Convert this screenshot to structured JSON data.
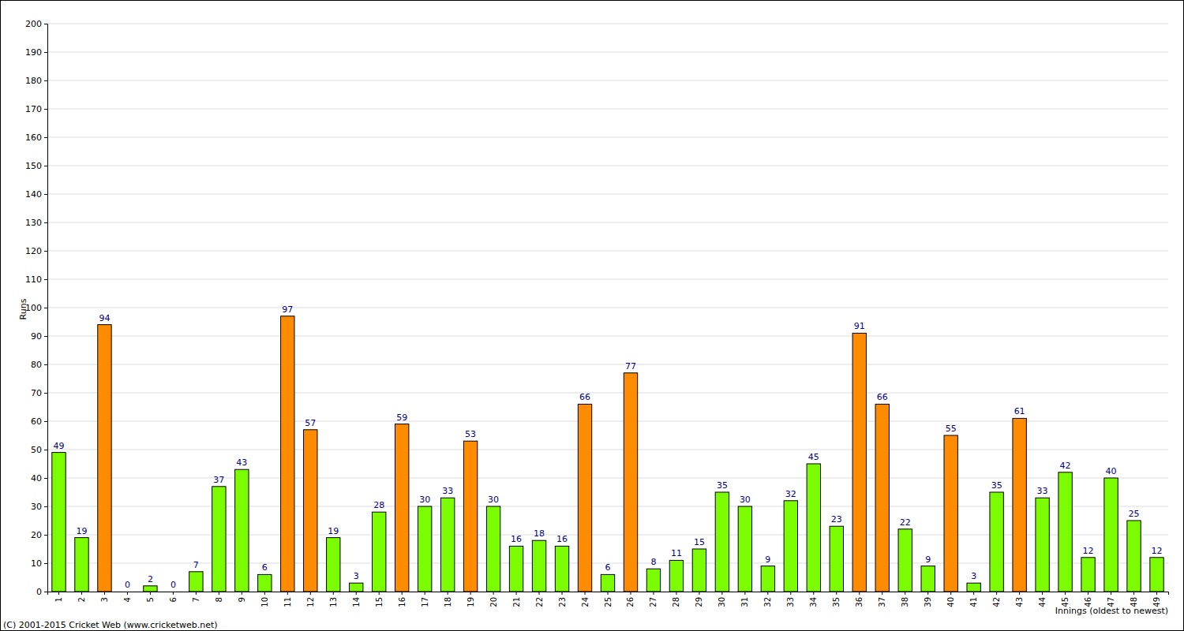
{
  "chart_data": {
    "type": "bar",
    "x_label": "Innings (oldest to newest)",
    "y_label": "Runs",
    "annotations": [
      "(C) 2001-2015 Cricket Web (www.cricketweb.net)"
    ],
    "categories": [
      "1",
      "2",
      "3",
      "4",
      "5",
      "6",
      "7",
      "8",
      "9",
      "10",
      "11",
      "12",
      "13",
      "14",
      "15",
      "16",
      "17",
      "18",
      "19",
      "20",
      "21",
      "22",
      "23",
      "24",
      "25",
      "26",
      "27",
      "28",
      "29",
      "30",
      "31",
      "32",
      "33",
      "34",
      "35",
      "36",
      "37",
      "38",
      "39",
      "40",
      "41",
      "42",
      "43",
      "44",
      "45",
      "46",
      "47",
      "48",
      "49"
    ],
    "values": [
      49,
      19,
      94,
      0,
      2,
      0,
      7,
      37,
      43,
      6,
      97,
      57,
      19,
      3,
      28,
      59,
      30,
      33,
      53,
      30,
      16,
      18,
      16,
      66,
      6,
      77,
      8,
      11,
      15,
      35,
      30,
      9,
      32,
      45,
      23,
      91,
      66,
      22,
      9,
      55,
      3,
      35,
      61,
      33,
      42,
      12,
      40,
      25,
      12
    ],
    "colors": [
      "#7cfc00",
      "#7cfc00",
      "#ff8c00",
      "#7cfc00",
      "#7cfc00",
      "#7cfc00",
      "#7cfc00",
      "#7cfc00",
      "#7cfc00",
      "#7cfc00",
      "#ff8c00",
      "#ff8c00",
      "#7cfc00",
      "#7cfc00",
      "#7cfc00",
      "#ff8c00",
      "#7cfc00",
      "#7cfc00",
      "#ff8c00",
      "#7cfc00",
      "#7cfc00",
      "#7cfc00",
      "#7cfc00",
      "#ff8c00",
      "#7cfc00",
      "#ff8c00",
      "#7cfc00",
      "#7cfc00",
      "#7cfc00",
      "#7cfc00",
      "#7cfc00",
      "#7cfc00",
      "#7cfc00",
      "#7cfc00",
      "#7cfc00",
      "#ff8c00",
      "#ff8c00",
      "#7cfc00",
      "#7cfc00",
      "#ff8c00",
      "#7cfc00",
      "#7cfc00",
      "#ff8c00",
      "#7cfc00",
      "#7cfc00",
      "#7cfc00",
      "#7cfc00",
      "#7cfc00",
      "#7cfc00"
    ],
    "ylim": [
      0,
      200
    ],
    "yticks": [
      0,
      10,
      20,
      30,
      40,
      50,
      60,
      70,
      80,
      90,
      100,
      110,
      120,
      130,
      140,
      150,
      160,
      170,
      180,
      190,
      200
    ],
    "grid": true,
    "data_labels": true
  }
}
